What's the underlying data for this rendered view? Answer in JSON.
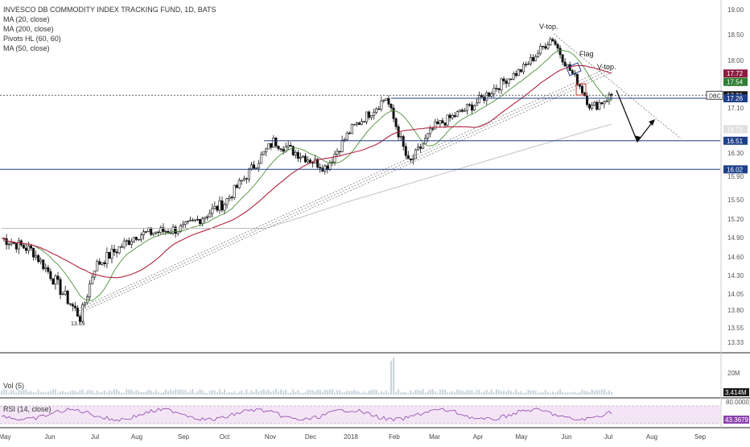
{
  "chart_data": {
    "type": "candlestick",
    "title": "INVESCO DB COMMODITY INDEX TRACKING FUND, 1D, BATS",
    "indicators": [
      "MA (20, close)",
      "MA (200, close)",
      "Pivots HL (60, 60)",
      "MA (50, close)"
    ],
    "y_ticks": [
      19.0,
      18.5,
      18.0,
      17.5,
      17.1,
      16.7,
      16.3,
      15.9,
      15.5,
      15.2,
      14.9,
      14.6,
      14.3,
      14.05,
      13.8,
      13.55,
      13.33
    ],
    "ylim": [
      13.33,
      19.0
    ],
    "x_labels": [
      "May",
      "Jun",
      "Jul",
      "Aug",
      "Sep",
      "Oct",
      "Nov",
      "Dec",
      "2018",
      "Feb",
      "Mar",
      "Apr",
      "May",
      "Jun",
      "Jul",
      "Aug",
      "Sep"
    ],
    "price_anchors": [
      {
        "date": "May",
        "price": 14.9
      },
      {
        "date": "Jun",
        "price": 14.7
      },
      {
        "date": "late Jun",
        "price": 13.69
      },
      {
        "date": "Jul",
        "price": 14.45
      },
      {
        "date": "Aug",
        "price": 14.95
      },
      {
        "date": "Sep",
        "price": 15.05
      },
      {
        "date": "Oct",
        "price": 15.45
      },
      {
        "date": "Nov",
        "price": 16.5
      },
      {
        "date": "Dec",
        "price": 16.05
      },
      {
        "date": "2018",
        "price": 16.7
      },
      {
        "date": "late Jan",
        "price": 17.28
      },
      {
        "date": "Feb",
        "price": 16.1
      },
      {
        "date": "Mar",
        "price": 16.75
      },
      {
        "date": "Apr",
        "price": 17.2
      },
      {
        "date": "May",
        "price": 17.8
      },
      {
        "date": "late May",
        "price": 18.45
      },
      {
        "date": "Jun",
        "price": 17.9
      },
      {
        "date": "late Jun",
        "price": 17.1
      },
      {
        "date": "Jul",
        "price": 17.31
      }
    ],
    "horizontal_levels": [
      17.26,
      16.51,
      16.02
    ],
    "price_badges": [
      {
        "label": "17.72",
        "value": 17.72,
        "color": "#8e1b3d"
      },
      {
        "label": "17.54",
        "value": 17.54,
        "color": "#2e7d32"
      },
      {
        "label": "17.31",
        "value": 17.31,
        "color": "#1a1a1a",
        "symbol": "DBC"
      },
      {
        "label": "17.26",
        "value": 17.26,
        "color": "#1e3f8a"
      },
      {
        "label": "16.71",
        "value": 16.71,
        "color": "#e0e0e0"
      },
      {
        "label": "16.51",
        "value": 16.51,
        "color": "#1e3f8a"
      },
      {
        "label": "16.02",
        "value": 16.02,
        "color": "#1e3f8a"
      }
    ],
    "annotations": [
      "V-top.",
      "Flag",
      "V-top.",
      "13.69"
    ],
    "volume": {
      "label": "Vol (5)",
      "ticks": [
        "20M"
      ],
      "last": "3.414M"
    },
    "rsi": {
      "label": "RSI (14, close)",
      "ticks": [
        "80.0000"
      ],
      "last": "43.3679"
    }
  }
}
